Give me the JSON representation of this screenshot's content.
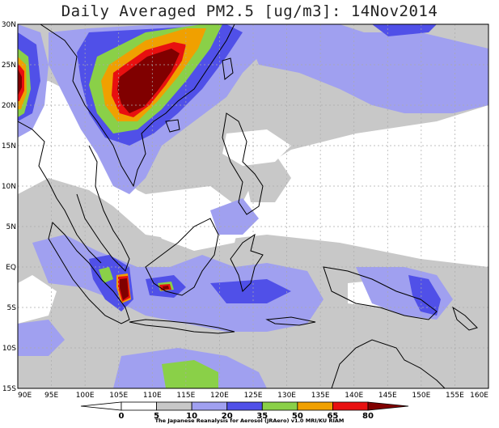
{
  "title": "Daily Averaged PM2.5 [ug/m3]: 14Nov2014",
  "lat_labels": [
    "30N",
    "25N",
    "20N",
    "15N",
    "10N",
    "5N",
    "EQ",
    "5S",
    "10S",
    "15S"
  ],
  "lon_labels": [
    "90E",
    "95E",
    "100E",
    "105E",
    "110E",
    "115E",
    "120E",
    "125E",
    "130E",
    "135E",
    "140E",
    "145E",
    "150E",
    "155E",
    "160E"
  ],
  "map_extent": {
    "lon_min": 90,
    "lon_max": 160,
    "lat_min": -15,
    "lat_max": 30
  },
  "colorbar": {
    "labels": [
      "0",
      "5",
      "10",
      "20",
      "35",
      "50",
      "65",
      "80"
    ],
    "colors": [
      "#ffffff",
      "#ffffff",
      "#c8c8c8",
      "#a0a0f0",
      "#5050e8",
      "#8ad048",
      "#f0a000",
      "#e81010",
      "#800000"
    ]
  },
  "credit": "The Japanese Reanalysis for Aerosol (JRAero) v1.0 MRI/KU RIAM",
  "legend_colors": {
    "gray": "#c8c8c8",
    "light_blue": "#a0a0f0",
    "blue": "#5050e8",
    "green": "#8ad048",
    "orange": "#f0a000",
    "red": "#e81010",
    "dark_red": "#800000",
    "coast": "#000000",
    "grid": "#aaaaaa"
  }
}
